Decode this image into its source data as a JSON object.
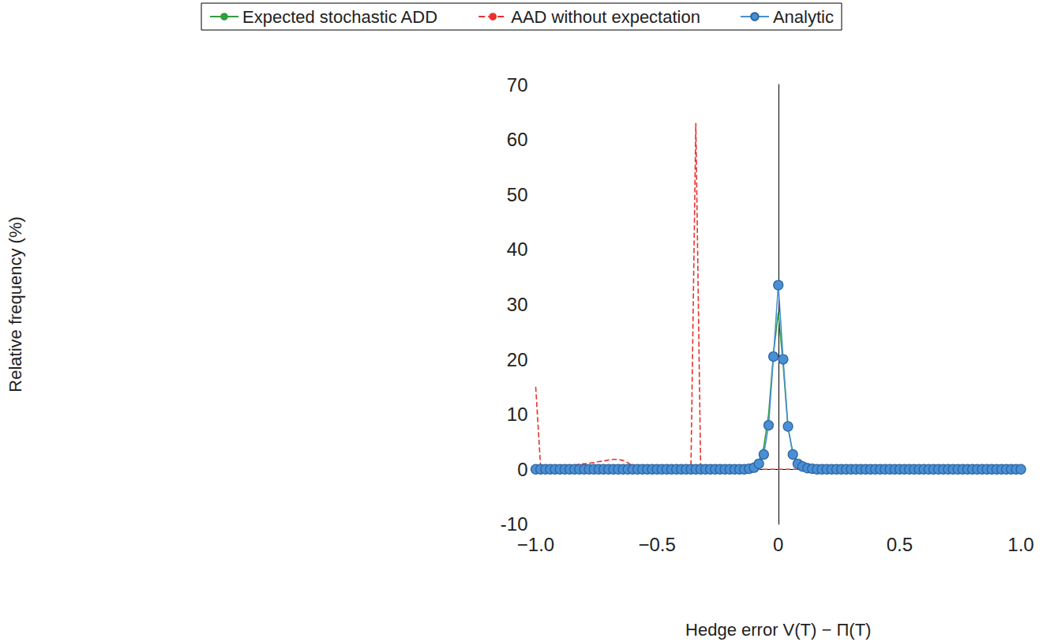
{
  "chart_data": {
    "type": "line",
    "x_label": "Hedge error V(T) − Π(T)",
    "y_label": "Relative frequency (%)",
    "x": [
      -1,
      -0.98,
      -0.96,
      -0.94,
      -0.92,
      -0.9,
      -0.88,
      -0.86,
      -0.84,
      -0.82,
      -0.8,
      -0.78,
      -0.76,
      -0.74,
      -0.72,
      -0.7,
      -0.68,
      -0.66,
      -0.64,
      -0.62,
      -0.6,
      -0.58,
      -0.56,
      -0.54,
      -0.52,
      -0.5,
      -0.48,
      -0.46,
      -0.44,
      -0.42,
      -0.4,
      -0.38,
      -0.36,
      -0.34,
      -0.32,
      -0.3,
      -0.28,
      -0.26,
      -0.24,
      -0.22,
      -0.2,
      -0.18,
      -0.16,
      -0.14,
      -0.12,
      -0.1,
      -0.08,
      -0.06,
      -0.04,
      -0.02,
      0,
      0.02,
      0.04,
      0.06,
      0.08,
      0.1,
      0.12,
      0.14,
      0.16,
      0.18,
      0.2,
      0.22,
      0.24,
      0.26,
      0.28,
      0.3,
      0.32,
      0.34,
      0.36,
      0.38,
      0.4,
      0.42,
      0.44,
      0.46,
      0.48,
      0.5,
      0.52,
      0.54,
      0.56,
      0.58,
      0.6,
      0.62,
      0.64,
      0.66,
      0.68,
      0.7,
      0.72,
      0.74,
      0.76,
      0.78,
      0.8,
      0.82,
      0.84,
      0.86,
      0.88,
      0.9,
      0.92,
      0.94,
      0.96,
      0.98,
      1
    ],
    "series": [
      {
        "name": "Expected stochastic ADD",
        "color": "#2e9e3e",
        "marker": "none",
        "line_style": "solid",
        "values": [
          0,
          0,
          0,
          0,
          0,
          0,
          0,
          0,
          0,
          0,
          0,
          0,
          0,
          0,
          0,
          0,
          0,
          0,
          0,
          0,
          0,
          0,
          0,
          0,
          0,
          0,
          0,
          0,
          0,
          0,
          0,
          0,
          0,
          0,
          0,
          0,
          0,
          0,
          0,
          0,
          0,
          0,
          0,
          0,
          0,
          0.5,
          1.5,
          4,
          10,
          21,
          28.5,
          19,
          7.5,
          3,
          1.2,
          0.5,
          0.2,
          0,
          0,
          0,
          0,
          0,
          0,
          0,
          0,
          0,
          0,
          0,
          0,
          0,
          0,
          0,
          0,
          0,
          0,
          0,
          0,
          0,
          0,
          0,
          0,
          0,
          0,
          0,
          0,
          0,
          0,
          0,
          0,
          0,
          0,
          0,
          0,
          0,
          0,
          0,
          0,
          0,
          0,
          0,
          0
        ]
      },
      {
        "name": "AAD without expectation",
        "color": "#e8312f",
        "marker": "none",
        "line_style": "dashed",
        "values": [
          15,
          0.5,
          0.6,
          0.6,
          0.6,
          0.7,
          0.7,
          0.8,
          0.8,
          0.9,
          1.0,
          1.1,
          1.2,
          1.4,
          1.5,
          1.7,
          1.8,
          1.8,
          1.6,
          1.2,
          0.6,
          0.2,
          0,
          0,
          0,
          0,
          0,
          0,
          0,
          0,
          0,
          0,
          0.5,
          63,
          0,
          0,
          0,
          0,
          0,
          0,
          0,
          0,
          0,
          0,
          0,
          0,
          0,
          0,
          0,
          0,
          0,
          0,
          0,
          0,
          0,
          0,
          0,
          0,
          0,
          0,
          0,
          0,
          0,
          0,
          0,
          0,
          0,
          0,
          0,
          0,
          0,
          0,
          0,
          0,
          0,
          0,
          0,
          0,
          0,
          0,
          0,
          0,
          0,
          0,
          0,
          0,
          0,
          0,
          0,
          0,
          0,
          0,
          0,
          0,
          0,
          0,
          0,
          0,
          0,
          0,
          0
        ]
      },
      {
        "name": "Analytic",
        "color": "#4a8fd4",
        "marker": "circle",
        "line_style": "solid",
        "values": [
          0,
          0,
          0,
          0,
          0,
          0,
          0,
          0,
          0,
          0,
          0,
          0,
          0,
          0,
          0,
          0,
          0,
          0,
          0,
          0,
          0,
          0,
          0,
          0,
          0,
          0,
          0,
          0,
          0,
          0,
          0,
          0,
          0,
          0,
          0,
          0,
          0,
          0,
          0,
          0,
          0,
          0,
          0,
          0,
          0.1,
          0.3,
          1.0,
          2.7,
          8,
          20.5,
          33.5,
          20,
          7.8,
          2.7,
          1.0,
          0.5,
          0.2,
          0.1,
          0,
          0,
          0,
          0,
          0,
          0,
          0,
          0,
          0,
          0,
          0,
          0,
          0,
          0,
          0,
          0,
          0,
          0,
          0,
          0,
          0,
          0,
          0,
          0,
          0,
          0,
          0,
          0,
          0,
          0,
          0,
          0,
          0,
          0,
          0,
          0,
          0,
          0,
          0,
          0,
          0,
          0,
          0
        ]
      }
    ],
    "xlim": [
      -1,
      1
    ],
    "xticks": [
      {
        "value": -1,
        "label": "−1.0"
      },
      {
        "value": -0.5,
        "label": "−0.5"
      },
      0,
      0.5,
      {
        "value": 1,
        "label": "1.0"
      }
    ],
    "ylim": [
      -10,
      70
    ],
    "yticks": [
      -10,
      0,
      10,
      20,
      30,
      40,
      50,
      60,
      70
    ],
    "grid": false,
    "legend": "top"
  }
}
